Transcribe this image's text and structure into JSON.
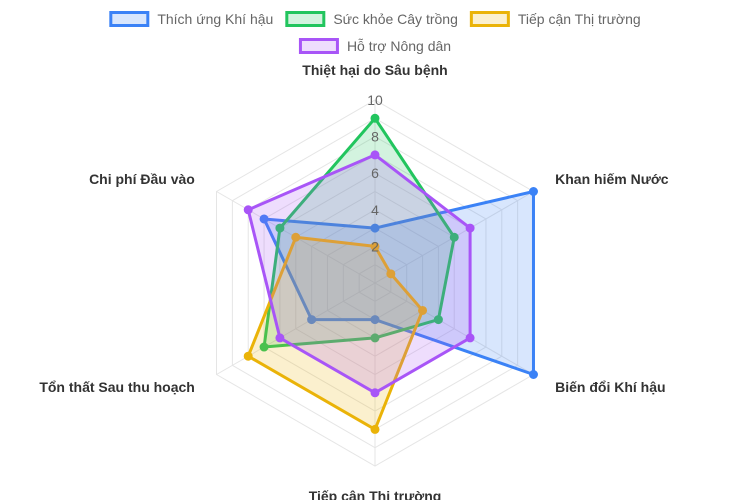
{
  "chart_data": {
    "type": "radar",
    "axes": [
      "Thiệt hại do Sâu bệnh",
      "Khan hiếm Nước",
      "Biến đổi Khí hậu",
      "Tiếp cận Thị trường",
      "Tổn thất Sau thu hoạch",
      "Chi phí Đầu vào"
    ],
    "r_range": [
      0,
      10
    ],
    "ticks": [
      {
        "value": 2,
        "label": "2"
      },
      {
        "value": 4,
        "label": "4"
      },
      {
        "value": 6,
        "label": "6"
      },
      {
        "value": 8,
        "label": "8"
      },
      {
        "value": 10,
        "label": "10"
      }
    ],
    "grid": true,
    "legend_position": "top",
    "series": [
      {
        "name": "Thích ứng Khí hậu",
        "color": "#3b82f6",
        "fill": "rgba(59,130,246,0.2)",
        "values": [
          3,
          10,
          10,
          2,
          4,
          7
        ]
      },
      {
        "name": "Sức khỏe Cây trồng",
        "color": "#22c55e",
        "fill": "rgba(34,197,94,0.2)",
        "values": [
          9,
          5,
          4,
          3,
          7,
          6
        ]
      },
      {
        "name": "Tiếp cận Thị trường",
        "color": "#eab308",
        "fill": "rgba(234,179,8,0.2)",
        "values": [
          2,
          1,
          3,
          8,
          8,
          5
        ]
      },
      {
        "name": "Hỗ trợ Nông dân",
        "color": "#a855f7",
        "fill": "rgba(168,85,247,0.2)",
        "values": [
          7,
          6,
          6,
          6,
          6,
          8
        ]
      }
    ]
  }
}
